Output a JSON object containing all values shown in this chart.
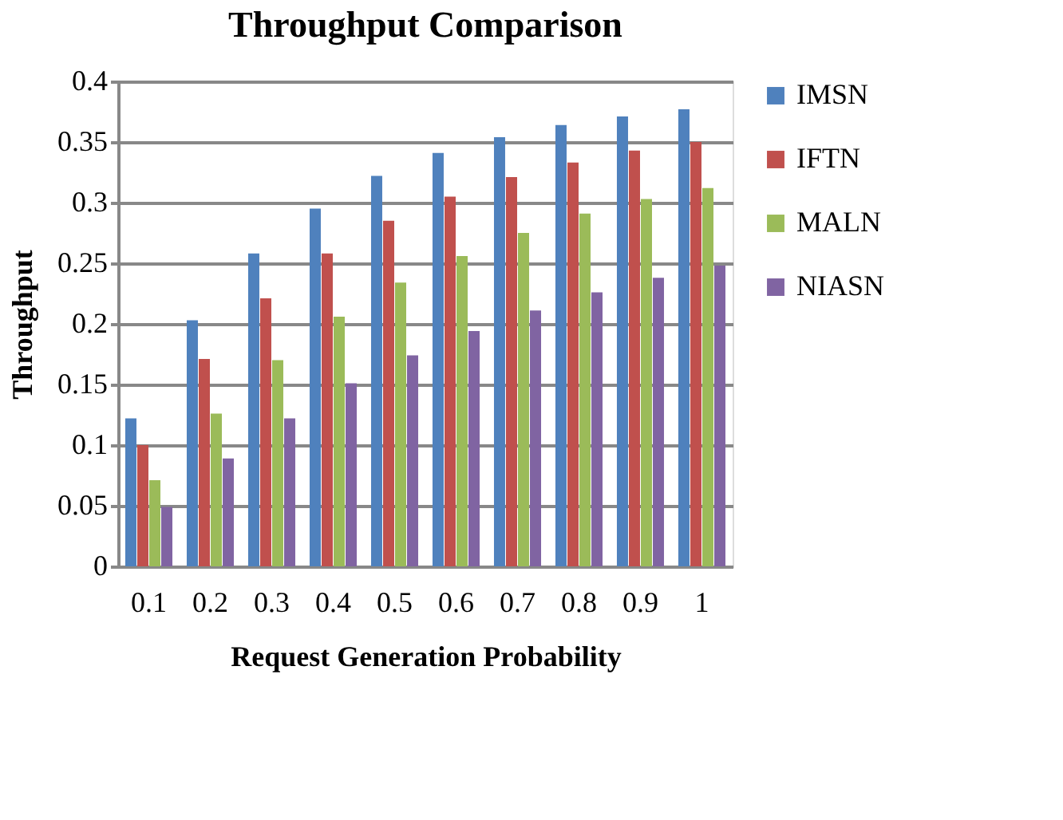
{
  "chart_data": {
    "type": "bar",
    "title": "Throughput Comparison",
    "xlabel": "Request Generation Probability",
    "ylabel": "Throughput",
    "categories": [
      "0.1",
      "0.2",
      "0.3",
      "0.4",
      "0.5",
      "0.6",
      "0.7",
      "0.8",
      "0.9",
      "1"
    ],
    "series": [
      {
        "name": "IMSN",
        "color": "#4f81bd",
        "values": [
          0.122,
          0.203,
          0.258,
          0.295,
          0.322,
          0.341,
          0.354,
          0.364,
          0.371,
          0.377
        ]
      },
      {
        "name": "IFTN",
        "color": "#c0504d",
        "values": [
          0.1,
          0.171,
          0.221,
          0.258,
          0.285,
          0.305,
          0.321,
          0.333,
          0.343,
          0.35
        ]
      },
      {
        "name": "MALN",
        "color": "#9bbb59",
        "values": [
          0.071,
          0.126,
          0.17,
          0.206,
          0.234,
          0.256,
          0.275,
          0.291,
          0.303,
          0.312
        ]
      },
      {
        "name": "NIASN",
        "color": "#8064a2",
        "values": [
          0.049,
          0.089,
          0.122,
          0.151,
          0.174,
          0.194,
          0.211,
          0.226,
          0.238,
          0.248
        ]
      }
    ],
    "ylim": [
      0,
      0.4
    ],
    "yticks": [
      0,
      0.05,
      0.1,
      0.15,
      0.2,
      0.25,
      0.3,
      0.35,
      0.4
    ],
    "grid": "y",
    "legend": "right"
  }
}
